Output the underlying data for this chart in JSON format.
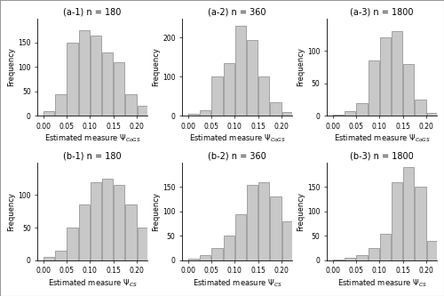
{
  "titles": [
    [
      "(a-1) n = 180",
      "(a-2) n = 360",
      "(a-3) n = 1800"
    ],
    [
      "(b-1) n = 180",
      "(b-2) n = 360",
      "(b-3) n = 1800"
    ]
  ],
  "bar_color": "#c8c8c8",
  "bar_edgecolor": "#888888",
  "histograms": {
    "a1": [
      10,
      45,
      150,
      175,
      165,
      130,
      110,
      45,
      20
    ],
    "a2": [
      5,
      15,
      100,
      135,
      230,
      195,
      100,
      35,
      10
    ],
    "a3": [
      2,
      8,
      20,
      85,
      120,
      130,
      80,
      25,
      5
    ],
    "b1": [
      5,
      15,
      50,
      85,
      120,
      125,
      115,
      85,
      50
    ],
    "b2": [
      3,
      10,
      25,
      50,
      95,
      155,
      160,
      130,
      80
    ],
    "b3": [
      2,
      5,
      10,
      25,
      55,
      160,
      190,
      150,
      40
    ]
  },
  "ylims": {
    "a1": [
      0,
      200
    ],
    "a2": [
      0,
      250
    ],
    "a3": [
      0,
      150
    ],
    "b1": [
      0,
      150
    ],
    "b2": [
      0,
      200
    ],
    "b3": [
      0,
      200
    ]
  },
  "yticks": {
    "a1": [
      0,
      50,
      100,
      150
    ],
    "a2": [
      0,
      100,
      200
    ],
    "a3": [
      0,
      50,
      100
    ],
    "b1": [
      0,
      50,
      100
    ],
    "b2": [
      0,
      50,
      100,
      150
    ],
    "b3": [
      0,
      50,
      100,
      150
    ]
  },
  "xticks": [
    0.0,
    0.05,
    0.1,
    0.15,
    0.2
  ],
  "xtick_labels": [
    "0.00",
    "0.05",
    "0.10",
    "0.15",
    "0.20"
  ],
  "fig_bg": "#ffffff",
  "panel_bg": "#ffffff"
}
